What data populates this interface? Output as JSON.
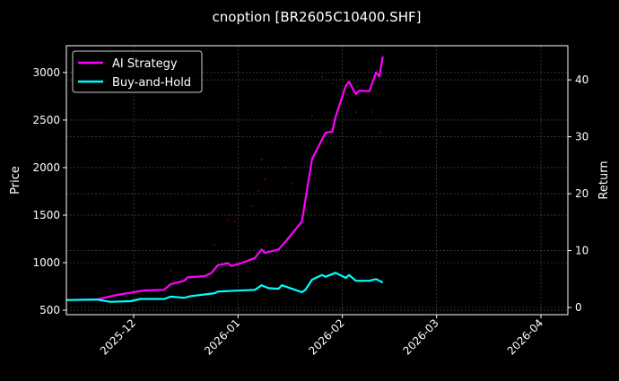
{
  "chart_data": {
    "type": "line",
    "title": "cnoption [BR2605C10400.SHF]",
    "ylabel": "Price",
    "y2label": "Return",
    "ylim": [
      453,
      3282
    ],
    "y2lim": [
      -1.26,
      46.0
    ],
    "xlim": [
      "2025-11-11",
      "2026-04-09"
    ],
    "yticks": [
      500,
      1000,
      1500,
      2000,
      2500,
      3000
    ],
    "y2ticks": [
      0,
      10,
      20,
      30,
      40
    ],
    "xticks": [
      "2025-12",
      "2026-01",
      "2026-02",
      "2026-03",
      "2026-04"
    ],
    "xtick_dates": [
      "2025-12-01",
      "2026-01-01",
      "2026-02-01",
      "2026-03-01",
      "2026-04-01"
    ],
    "grid": true,
    "legend_placement": "top-left",
    "colors": {
      "ai": "#ff00ff",
      "bh": "#00ffff",
      "markers": "#ff0000",
      "background": "#000000",
      "grid": "#555555"
    },
    "series": [
      {
        "name": "AI Strategy",
        "axis": "right",
        "x": [
          "2025-11-11",
          "2025-11-20",
          "2025-11-26",
          "2025-12-01",
          "2025-12-04",
          "2025-12-10",
          "2025-12-12",
          "2025-12-16",
          "2025-12-17",
          "2025-12-22",
          "2025-12-24",
          "2025-12-26",
          "2025-12-29",
          "2025-12-30",
          "2026-01-02",
          "2026-01-06",
          "2026-01-08",
          "2026-01-09",
          "2026-01-13",
          "2026-01-15",
          "2026-01-20",
          "2026-01-21",
          "2026-01-23",
          "2026-01-27",
          "2026-01-29",
          "2026-01-30",
          "2026-02-02",
          "2026-02-03",
          "2026-02-05",
          "2026-02-06",
          "2026-02-09",
          "2026-02-11",
          "2026-02-12",
          "2026-02-13"
        ],
        "y": [
          1.3,
          1.4,
          2.2,
          2.7,
          3.0,
          3.1,
          4.1,
          4.7,
          5.3,
          5.5,
          6.0,
          7.4,
          7.8,
          7.3,
          7.8,
          8.7,
          10.2,
          9.6,
          10.2,
          11.5,
          15.1,
          18.9,
          26.1,
          30.7,
          30.9,
          33.5,
          38.9,
          39.7,
          37.5,
          38.1,
          38.0,
          41.3,
          40.6,
          44.1
        ]
      },
      {
        "name": "Buy-and-Hold",
        "axis": "right",
        "x": [
          "2025-11-11",
          "2025-11-20",
          "2025-11-24",
          "2025-11-30",
          "2025-12-03",
          "2025-12-10",
          "2025-12-12",
          "2025-12-16",
          "2025-12-18",
          "2025-12-25",
          "2025-12-26",
          "2026-01-06",
          "2026-01-08",
          "2026-01-10",
          "2026-01-13",
          "2026-01-14",
          "2026-01-20",
          "2026-01-21",
          "2026-01-23",
          "2026-01-26",
          "2026-01-27",
          "2026-01-30",
          "2026-02-02",
          "2026-02-03",
          "2026-02-05",
          "2026-02-09",
          "2026-02-11",
          "2026-02-13"
        ],
        "y": [
          1.3,
          1.4,
          1.0,
          1.1,
          1.5,
          1.5,
          1.9,
          1.7,
          2.0,
          2.5,
          2.8,
          3.1,
          3.9,
          3.4,
          3.3,
          3.9,
          2.7,
          3.1,
          4.9,
          5.7,
          5.4,
          6.1,
          5.2,
          5.7,
          4.7,
          4.7,
          5.0,
          4.4
        ]
      }
    ],
    "markers": {
      "axis": "left",
      "x": [
        "2025-12-12",
        "2025-12-25",
        "2025-12-29",
        "2025-12-31",
        "2026-01-05",
        "2026-01-07",
        "2026-01-08",
        "2026-01-09",
        "2026-01-15",
        "2026-01-17",
        "2026-01-23",
        "2026-01-26",
        "2026-01-29",
        "2026-02-05",
        "2026-02-10",
        "2026-02-12"
      ],
      "y": [
        915,
        1188,
        1452,
        1434,
        1594,
        1754,
        2084,
        1877,
        2000,
        1830,
        2546,
        2952,
        2886,
        2584,
        2584,
        2367
      ]
    }
  }
}
